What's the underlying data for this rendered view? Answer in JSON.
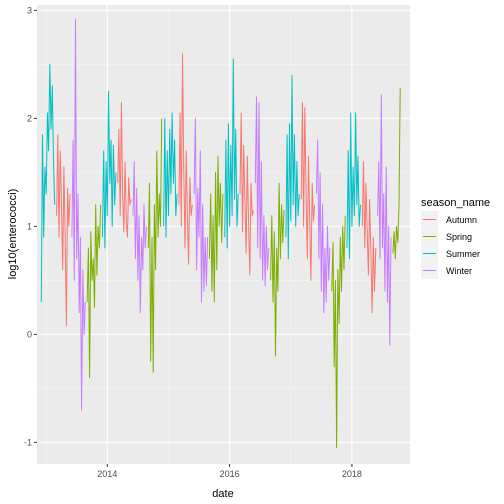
{
  "chart_data": {
    "type": "line",
    "xlabel": "date",
    "ylabel": "log10(enterococci)",
    "legend_title": "season_name",
    "legend_position": "right",
    "grid": true,
    "xlim": [
      2012.85,
      2018.95
    ],
    "ylim": [
      -1.2,
      3.05
    ],
    "x_ticks": [
      {
        "value": 2014,
        "label": "2014"
      },
      {
        "value": 2016,
        "label": "2016"
      },
      {
        "value": 2018,
        "label": "2018"
      }
    ],
    "y_ticks": [
      {
        "value": -1,
        "label": "-1"
      },
      {
        "value": 0,
        "label": "0"
      },
      {
        "value": 1,
        "label": "1"
      },
      {
        "value": 2,
        "label": "2"
      },
      {
        "value": 3,
        "label": "3"
      }
    ],
    "series": [
      {
        "name": "Autumn",
        "color": "#F8766D",
        "segments": [
          {
            "x": [
              2013.17,
              2013.19,
              2013.21,
              2013.23,
              2013.25,
              2013.27,
              2013.29,
              2013.31,
              2013.33,
              2013.35,
              2013.37,
              2013.39
            ],
            "y": [
              1.1,
              1.85,
              0.9,
              1.7,
              1.2,
              0.6,
              1.55,
              0.95,
              0.08,
              1.35,
              1.0,
              1.3
            ]
          },
          {
            "x": [
              2014.17,
              2014.19,
              2014.21,
              2014.23,
              2014.25,
              2014.27,
              2014.29,
              2014.31,
              2014.33,
              2014.35,
              2014.37,
              2014.39
            ],
            "y": [
              1.4,
              1.9,
              1.1,
              2.15,
              1.3,
              0.95,
              1.6,
              1.05,
              0.9,
              1.45,
              1.2,
              1.25
            ]
          },
          {
            "x": [
              2015.17,
              2015.19,
              2015.21,
              2015.23,
              2015.25,
              2015.27,
              2015.29,
              2015.31,
              2015.33,
              2015.35,
              2015.37,
              2015.39
            ],
            "y": [
              1.2,
              2.05,
              1.0,
              2.6,
              1.5,
              0.8,
              1.7,
              1.1,
              0.65,
              1.45,
              1.1,
              1.2
            ]
          },
          {
            "x": [
              2016.17,
              2016.19,
              2016.21,
              2016.23,
              2016.25,
              2016.27,
              2016.29,
              2016.31,
              2016.33,
              2016.35,
              2016.37,
              2016.39
            ],
            "y": [
              1.3,
              2.05,
              0.95,
              1.75,
              1.25,
              0.75,
              1.65,
              1.0,
              0.55,
              1.4,
              1.1,
              1.15
            ]
          },
          {
            "x": [
              2017.17,
              2017.19,
              2017.21,
              2017.23,
              2017.25,
              2017.27,
              2017.29,
              2017.31,
              2017.33,
              2017.35,
              2017.37,
              2017.39
            ],
            "y": [
              1.25,
              2.15,
              1.0,
              2.1,
              1.35,
              0.7,
              1.65,
              1.05,
              0.5,
              1.4,
              1.05,
              1.2
            ]
          },
          {
            "x": [
              2018.17,
              2018.19,
              2018.21,
              2018.23,
              2018.25,
              2018.27,
              2018.29,
              2018.31,
              2018.33,
              2018.35,
              2018.37,
              2018.39
            ],
            "y": [
              1.0,
              1.6,
              0.8,
              1.4,
              0.95,
              0.55,
              1.25,
              0.75,
              0.2,
              0.9,
              0.4,
              0.8
            ]
          }
        ]
      },
      {
        "name": "Spring",
        "color": "#7CAE00",
        "segments": [
          {
            "x": [
              2013.67,
              2013.69,
              2013.71,
              2013.73,
              2013.75,
              2013.77,
              2013.79,
              2013.81,
              2013.83,
              2013.85,
              2013.87,
              2013.89
            ],
            "y": [
              0.3,
              0.8,
              -0.4,
              0.95,
              0.5,
              0.7,
              0.25,
              1.2,
              0.55,
              1.0,
              0.8,
              1.2
            ]
          },
          {
            "x": [
              2014.67,
              2014.69,
              2014.71,
              2014.73,
              2014.75,
              2014.77,
              2014.79,
              2014.81,
              2014.83,
              2014.85,
              2014.87,
              2014.89
            ],
            "y": [
              0.8,
              1.4,
              -0.25,
              0.9,
              -0.35,
              1.2,
              0.6,
              1.7,
              0.9,
              1.3,
              1.0,
              2.0
            ]
          },
          {
            "x": [
              2015.67,
              2015.69,
              2015.71,
              2015.73,
              2015.75,
              2015.77,
              2015.79,
              2015.81,
              2015.83,
              2015.85,
              2015.87,
              2015.89
            ],
            "y": [
              0.7,
              1.3,
              0.4,
              1.1,
              0.3,
              1.5,
              0.6,
              1.65,
              1.0,
              1.4,
              0.85,
              1.3
            ]
          },
          {
            "x": [
              2016.67,
              2016.69,
              2016.71,
              2016.73,
              2016.75,
              2016.77,
              2016.79,
              2016.81,
              2016.83,
              2016.85,
              2016.87,
              2016.89
            ],
            "y": [
              0.5,
              1.1,
              0.3,
              0.95,
              -0.2,
              0.8,
              0.4,
              1.4,
              0.7,
              1.2,
              0.85,
              1.15
            ]
          },
          {
            "x": [
              2017.67,
              2017.69,
              2017.71,
              2017.73,
              2017.75,
              2017.77,
              2017.79,
              2017.81,
              2017.83,
              2017.85,
              2017.87,
              2017.89
            ],
            "y": [
              0.4,
              0.85,
              -0.3,
              0.5,
              -1.05,
              0.6,
              0.1,
              0.9,
              0.4,
              1.0,
              0.6,
              1.1
            ]
          },
          {
            "x": [
              2018.67,
              2018.69,
              2018.71,
              2018.73,
              2018.75,
              2018.77,
              2018.79
            ],
            "y": [
              0.75,
              0.95,
              0.7,
              1.0,
              0.85,
              1.2,
              2.28
            ]
          }
        ]
      },
      {
        "name": "Summer",
        "color": "#00BFC4",
        "segments": [
          {
            "x": [
              2012.92,
              2012.94,
              2012.96,
              2012.98,
              2013.0,
              2013.02,
              2013.04,
              2013.06,
              2013.08,
              2013.1,
              2013.12,
              2013.14
            ],
            "y": [
              0.3,
              1.85,
              0.9,
              1.55,
              1.3,
              2.05,
              1.7,
              2.5,
              1.9,
              2.3,
              1.6,
              1.2
            ]
          },
          {
            "x": [
              2013.92,
              2013.94,
              2013.96,
              2013.98,
              2014.0,
              2014.02,
              2014.04,
              2014.06,
              2014.08,
              2014.1,
              2014.12,
              2014.14
            ],
            "y": [
              0.9,
              1.7,
              0.8,
              1.6,
              1.1,
              2.25,
              1.4,
              1.8,
              1.0,
              1.75,
              1.2,
              1.5
            ]
          },
          {
            "x": [
              2014.92,
              2014.94,
              2014.96,
              2014.98,
              2015.0,
              2015.02,
              2015.04,
              2015.06,
              2015.08,
              2015.1,
              2015.12,
              2015.14
            ],
            "y": [
              1.0,
              2.0,
              0.9,
              1.7,
              1.1,
              1.9,
              1.3,
              2.05,
              1.4,
              1.8,
              1.1,
              1.3
            ]
          },
          {
            "x": [
              2015.92,
              2015.94,
              2015.96,
              2015.98,
              2016.0,
              2016.02,
              2016.04,
              2016.06,
              2016.08,
              2016.1,
              2016.12,
              2016.14
            ],
            "y": [
              0.9,
              1.8,
              0.8,
              1.95,
              1.0,
              1.75,
              1.1,
              2.55,
              1.25,
              1.9,
              1.0,
              1.3
            ]
          },
          {
            "x": [
              2016.92,
              2016.94,
              2016.96,
              2016.98,
              2017.0,
              2017.02,
              2017.04,
              2017.06,
              2017.08,
              2017.1,
              2017.12,
              2017.14
            ],
            "y": [
              0.9,
              1.85,
              0.7,
              1.95,
              1.05,
              2.4,
              1.2,
              1.85,
              1.0,
              1.6,
              1.1,
              1.3
            ]
          },
          {
            "x": [
              2017.92,
              2017.94,
              2017.96,
              2017.98,
              2018.0,
              2018.02,
              2018.04,
              2018.06,
              2018.08,
              2018.1,
              2018.12,
              2018.14
            ],
            "y": [
              0.8,
              1.7,
              0.7,
              2.05,
              1.0,
              1.55,
              1.1,
              2.05,
              1.2,
              1.65,
              1.0,
              1.2
            ]
          }
        ]
      },
      {
        "name": "Winter",
        "color": "#C77CFF",
        "segments": [
          {
            "x": [
              2013.42,
              2013.44,
              2013.46,
              2013.48,
              2013.5,
              2013.52,
              2013.54,
              2013.56,
              2013.58,
              2013.6,
              2013.62,
              2013.64
            ],
            "y": [
              0.9,
              1.8,
              0.5,
              2.92,
              0.7,
              1.3,
              0.2,
              0.9,
              -0.7,
              0.6,
              0.0,
              0.3
            ]
          },
          {
            "x": [
              2014.42,
              2014.44,
              2014.46,
              2014.48,
              2014.5,
              2014.52,
              2014.54,
              2014.56,
              2014.58,
              2014.6,
              2014.62,
              2014.64
            ],
            "y": [
              1.1,
              1.6,
              0.7,
              1.35,
              0.5,
              1.1,
              0.2,
              0.9,
              0.6,
              1.2,
              0.8,
              1.0
            ]
          },
          {
            "x": [
              2015.42,
              2015.44,
              2015.46,
              2015.48,
              2015.5,
              2015.52,
              2015.54,
              2015.56,
              2015.58,
              2015.6,
              2015.62,
              2015.64
            ],
            "y": [
              1.3,
              2.0,
              0.6,
              1.35,
              0.9,
              1.7,
              0.3,
              1.2,
              0.4,
              0.9,
              0.45,
              0.9
            ]
          },
          {
            "x": [
              2016.42,
              2016.44,
              2016.46,
              2016.48,
              2016.5,
              2016.52,
              2016.54,
              2016.56,
              2016.58,
              2016.6,
              2016.62,
              2016.64
            ],
            "y": [
              1.4,
              2.2,
              0.8,
              2.15,
              0.7,
              1.6,
              0.5,
              1.1,
              0.45,
              1.0,
              0.6,
              0.8
            ]
          },
          {
            "x": [
              2017.42,
              2017.44,
              2017.46,
              2017.48,
              2017.5,
              2017.52,
              2017.54,
              2017.56,
              2017.58,
              2017.6,
              2017.62,
              2017.64
            ],
            "y": [
              1.3,
              1.8,
              0.7,
              1.5,
              0.4,
              1.2,
              0.2,
              0.8,
              0.3,
              1.0,
              0.5,
              0.8
            ]
          },
          {
            "x": [
              2018.42,
              2018.44,
              2018.46,
              2018.48,
              2018.5,
              2018.52,
              2018.54,
              2018.56,
              2018.58,
              2018.6,
              2018.62,
              2018.64
            ],
            "y": [
              1.1,
              1.6,
              0.7,
              2.22,
              0.8,
              1.3,
              0.4,
              1.55,
              0.3,
              1.0,
              -0.1,
              0.9
            ]
          }
        ]
      }
    ]
  }
}
